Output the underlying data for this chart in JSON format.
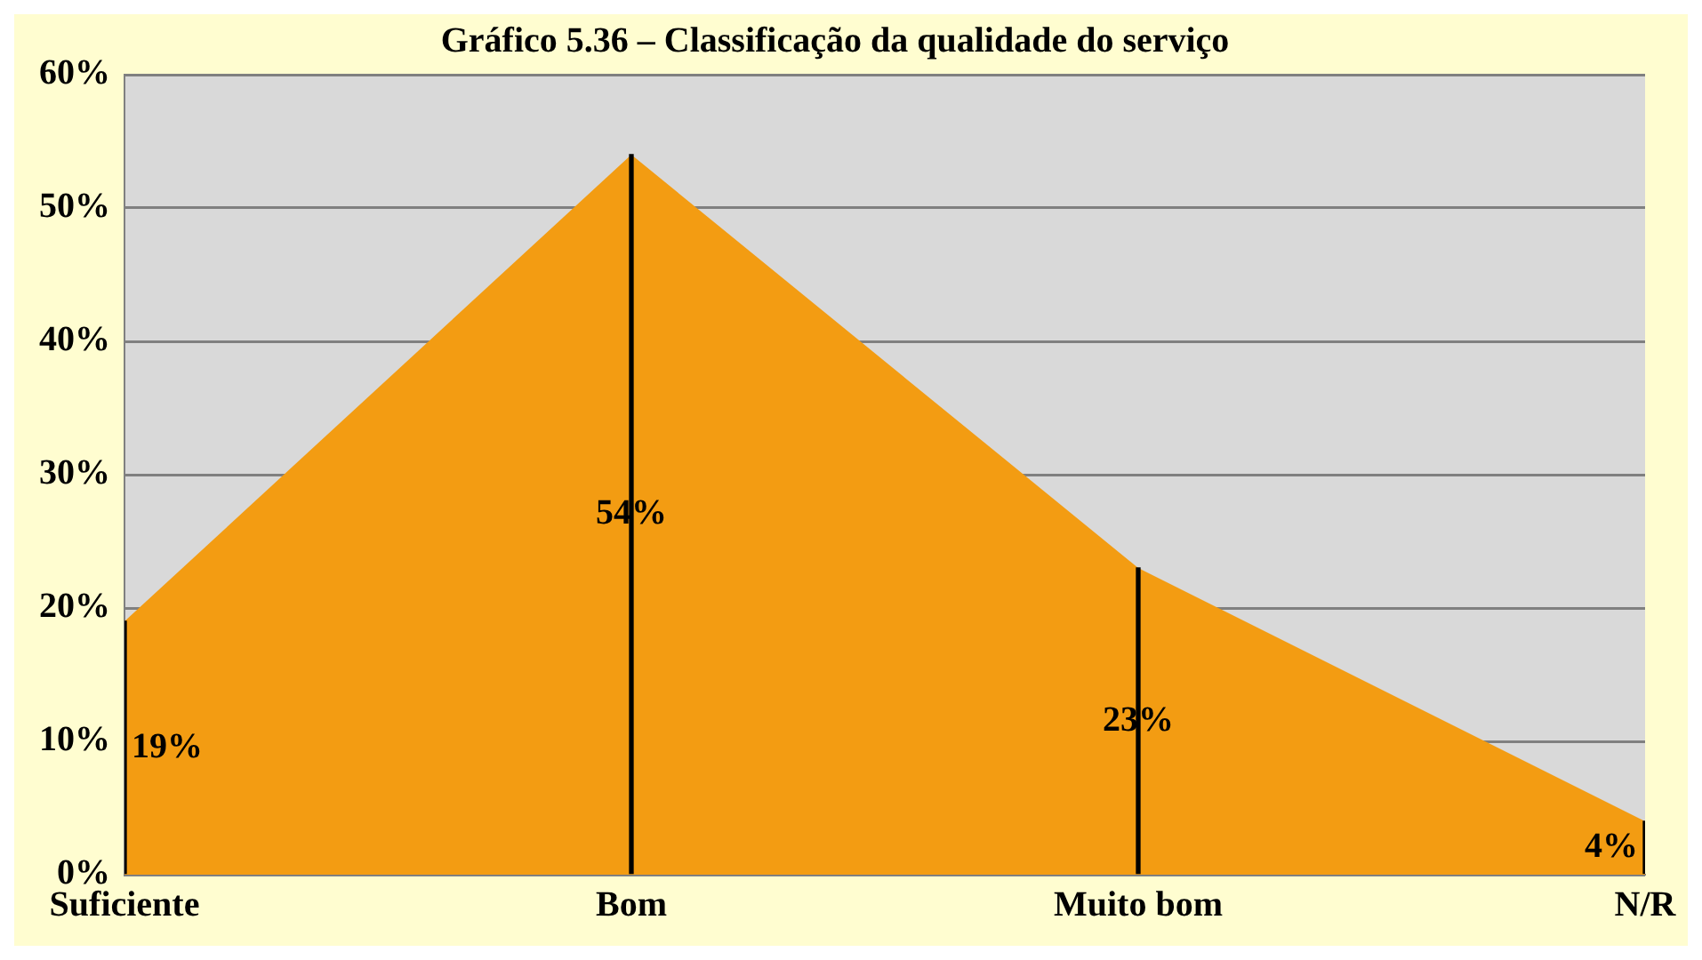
{
  "chart_data": {
    "type": "area",
    "title": "Gráfico 5.36 – Classificação da qualidade do serviço",
    "categories": [
      "Suficiente",
      "Bom",
      "Muito bom",
      "N/R"
    ],
    "series": [
      {
        "color": "#f39c12",
        "values": [
          19,
          54,
          23,
          4
        ]
      },
      {
        "type": "bar",
        "color": "#000000",
        "values": [
          19,
          54,
          23,
          4
        ]
      }
    ],
    "value_labels": [
      "19%",
      "54%",
      "23%",
      "4%"
    ],
    "ylim": [
      0,
      60
    ],
    "yticks": [
      {
        "value": 0,
        "label": "0%"
      },
      {
        "value": 10,
        "label": "10%"
      },
      {
        "value": 20,
        "label": "20%"
      },
      {
        "value": 30,
        "label": "30%"
      },
      {
        "value": 40,
        "label": "40%"
      },
      {
        "value": 50,
        "label": "50%"
      },
      {
        "value": 60,
        "label": "60%"
      }
    ],
    "grid": "y",
    "legend": false
  }
}
